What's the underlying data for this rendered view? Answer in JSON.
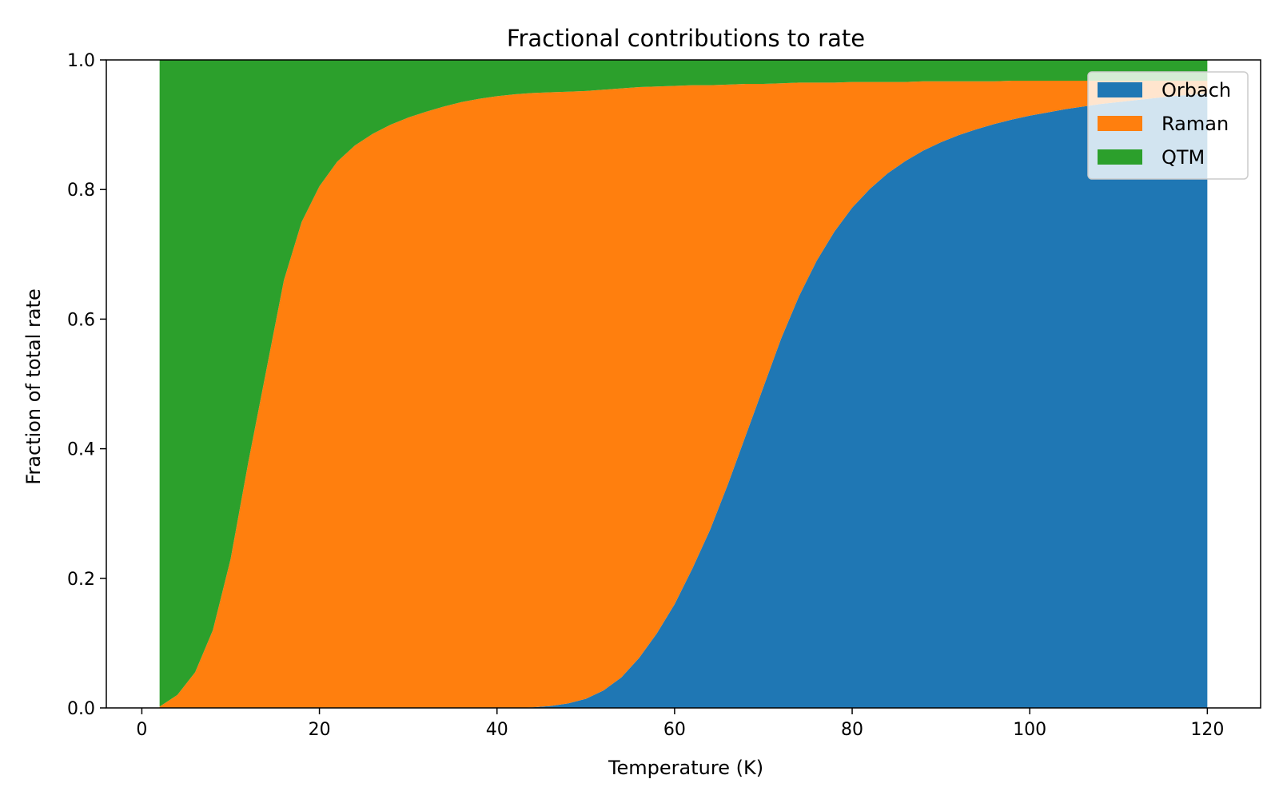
{
  "chart_data": {
    "type": "area",
    "stacked": true,
    "normalized": true,
    "title": "Fractional contributions to rate",
    "xlabel": "Temperature (K)",
    "ylabel": "Fraction of total rate",
    "xlim": [
      -4,
      126
    ],
    "ylim": [
      0.0,
      1.0
    ],
    "x_ticks": [
      0,
      20,
      40,
      60,
      80,
      100,
      120
    ],
    "x_tick_labels": [
      "0",
      "20",
      "40",
      "60",
      "80",
      "100",
      "120"
    ],
    "y_ticks": [
      0.0,
      0.2,
      0.4,
      0.6,
      0.8,
      1.0
    ],
    "y_tick_labels": [
      "0.0",
      "0.2",
      "0.4",
      "0.6",
      "0.8",
      "1.0"
    ],
    "grid": false,
    "legend_position": "top-right",
    "x": [
      2,
      4,
      6,
      8,
      10,
      12,
      14,
      16,
      18,
      20,
      22,
      24,
      26,
      28,
      30,
      32,
      34,
      36,
      38,
      40,
      42,
      44,
      46,
      48,
      50,
      52,
      54,
      56,
      58,
      60,
      62,
      64,
      66,
      68,
      70,
      72,
      74,
      76,
      78,
      80,
      82,
      84,
      86,
      88,
      90,
      92,
      94,
      96,
      98,
      100,
      102,
      104,
      106,
      108,
      110,
      112,
      114,
      116,
      118,
      120
    ],
    "series": [
      {
        "name": "Orbach",
        "color": "#1f77b4",
        "values": [
          0,
          0,
          0,
          0,
          0,
          0,
          0,
          0,
          0,
          0,
          0,
          0,
          0,
          0,
          0,
          0,
          0,
          0,
          0,
          0,
          0,
          0.001,
          0.003,
          0.007,
          0.014,
          0.027,
          0.047,
          0.077,
          0.115,
          0.16,
          0.215,
          0.275,
          0.345,
          0.42,
          0.495,
          0.57,
          0.635,
          0.69,
          0.735,
          0.772,
          0.801,
          0.825,
          0.844,
          0.86,
          0.873,
          0.884,
          0.893,
          0.901,
          0.908,
          0.914,
          0.919,
          0.924,
          0.928,
          0.932,
          0.935,
          0.938,
          0.941,
          0.944,
          0.946,
          0.948
        ]
      },
      {
        "name": "Raman",
        "color": "#ff7f0e",
        "values": [
          0.002,
          0.02,
          0.055,
          0.12,
          0.23,
          0.38,
          0.52,
          0.66,
          0.75,
          0.805,
          0.843,
          0.868,
          0.886,
          0.9,
          0.911,
          0.92,
          0.928,
          0.935,
          0.94,
          0.944,
          0.947,
          0.948,
          0.947,
          0.944,
          0.938,
          0.927,
          0.909,
          0.881,
          0.844,
          0.8,
          0.746,
          0.686,
          0.617,
          0.543,
          0.468,
          0.394,
          0.33,
          0.275,
          0.23,
          0.194,
          0.165,
          0.141,
          0.122,
          0.107,
          0.094,
          0.083,
          0.074,
          0.066,
          0.06,
          0.054,
          0.049,
          0.044,
          0.04,
          0.036,
          0.033,
          0.03,
          0.027,
          0.024,
          0.022,
          0.02
        ]
      },
      {
        "name": "QTM",
        "color": "#2ca02c",
        "values": [
          0.998,
          0.98,
          0.945,
          0.88,
          0.77,
          0.62,
          0.48,
          0.34,
          0.25,
          0.195,
          0.157,
          0.132,
          0.114,
          0.1,
          0.089,
          0.08,
          0.072,
          0.065,
          0.06,
          0.056,
          0.053,
          0.051,
          0.05,
          0.049,
          0.048,
          0.046,
          0.044,
          0.042,
          0.041,
          0.04,
          0.039,
          0.039,
          0.038,
          0.037,
          0.037,
          0.036,
          0.035,
          0.035,
          0.035,
          0.034,
          0.034,
          0.034,
          0.034,
          0.033,
          0.033,
          0.033,
          0.033,
          0.033,
          0.032,
          0.032,
          0.032,
          0.032,
          0.032,
          0.032,
          0.032,
          0.032,
          0.032,
          0.032,
          0.032,
          0.032
        ]
      }
    ]
  }
}
